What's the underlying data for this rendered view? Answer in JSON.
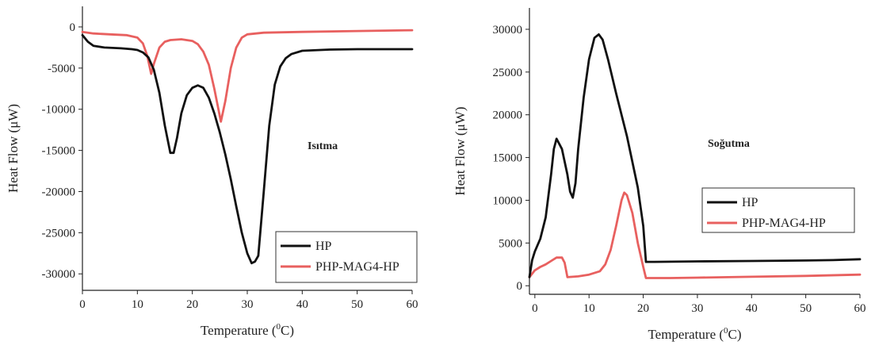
{
  "chart_data": [
    {
      "type": "line",
      "annotation": "Isıtma",
      "xlabel": "Temperature (",
      "xlabel_sup": "0",
      "xlabel_end": "C)",
      "ylabel": "Heat Flow (μW)",
      "xlim": [
        0,
        60
      ],
      "ylim": [
        -32000,
        2500
      ],
      "xticks": [
        0,
        10,
        20,
        30,
        40,
        50,
        60
      ],
      "yticks": [
        0,
        -5000,
        -10000,
        -15000,
        -20000,
        -25000,
        -30000
      ],
      "legend_position": "bottom-right",
      "series": [
        {
          "name": "HP",
          "color": "#111111",
          "points": [
            [
              0,
              -1000
            ],
            [
              1,
              -1800
            ],
            [
              2,
              -2300
            ],
            [
              4,
              -2500
            ],
            [
              7,
              -2600
            ],
            [
              9,
              -2700
            ],
            [
              10,
              -2800
            ],
            [
              11,
              -3100
            ],
            [
              12,
              -3700
            ],
            [
              13,
              -5200
            ],
            [
              14,
              -8000
            ],
            [
              15,
              -12000
            ],
            [
              16,
              -15300
            ],
            [
              16.6,
              -15300
            ],
            [
              17.2,
              -13500
            ],
            [
              18,
              -10500
            ],
            [
              19,
              -8300
            ],
            [
              20,
              -7400
            ],
            [
              21,
              -7100
            ],
            [
              22,
              -7400
            ],
            [
              23,
              -8600
            ],
            [
              24,
              -10500
            ],
            [
              25,
              -12800
            ],
            [
              26,
              -15500
            ],
            [
              27,
              -18500
            ],
            [
              28,
              -21800
            ],
            [
              29,
              -25000
            ],
            [
              30,
              -27500
            ],
            [
              30.8,
              -28700
            ],
            [
              31.4,
              -28500
            ],
            [
              32,
              -27800
            ],
            [
              33,
              -20000
            ],
            [
              34,
              -12000
            ],
            [
              35,
              -7000
            ],
            [
              36,
              -4800
            ],
            [
              37,
              -3800
            ],
            [
              38,
              -3300
            ],
            [
              40,
              -2900
            ],
            [
              45,
              -2750
            ],
            [
              50,
              -2700
            ],
            [
              55,
              -2700
            ],
            [
              60,
              -2700
            ]
          ]
        },
        {
          "name": "PHP-MAG4-HP",
          "color": "#e8605f",
          "points": [
            [
              0,
              -600
            ],
            [
              2,
              -800
            ],
            [
              5,
              -900
            ],
            [
              8,
              -1000
            ],
            [
              10,
              -1300
            ],
            [
              11,
              -2000
            ],
            [
              11.8,
              -3500
            ],
            [
              12.5,
              -5700
            ],
            [
              13,
              -4500
            ],
            [
              14,
              -2500
            ],
            [
              15,
              -1800
            ],
            [
              16,
              -1600
            ],
            [
              18,
              -1500
            ],
            [
              20,
              -1700
            ],
            [
              21,
              -2100
            ],
            [
              22,
              -3000
            ],
            [
              23,
              -4600
            ],
            [
              24,
              -7500
            ],
            [
              25.2,
              -11500
            ],
            [
              26,
              -9000
            ],
            [
              27,
              -5000
            ],
            [
              28,
              -2500
            ],
            [
              29,
              -1300
            ],
            [
              30,
              -900
            ],
            [
              33,
              -700
            ],
            [
              40,
              -600
            ],
            [
              50,
              -500
            ],
            [
              60,
              -400
            ]
          ]
        }
      ]
    },
    {
      "type": "line",
      "annotation": "Soğutma",
      "xlabel": "Temperature (",
      "xlabel_sup": "0",
      "xlabel_end": "C)",
      "ylabel": "Heat Flow (μW)",
      "xlim": [
        -1,
        60
      ],
      "ylim": [
        -1000,
        32500
      ],
      "xticks": [
        0,
        10,
        20,
        30,
        40,
        50,
        60
      ],
      "yticks": [
        0,
        5000,
        10000,
        15000,
        20000,
        25000,
        30000
      ],
      "legend_position": "center-right",
      "series": [
        {
          "name": "HP",
          "color": "#111111",
          "points": [
            [
              -1,
              1000
            ],
            [
              -0.5,
              3000
            ],
            [
              0,
              4000
            ],
            [
              1,
              5500
            ],
            [
              2,
              8000
            ],
            [
              3,
              13000
            ],
            [
              3.5,
              16000
            ],
            [
              4,
              17200
            ],
            [
              5,
              16000
            ],
            [
              6,
              13000
            ],
            [
              6.5,
              11000
            ],
            [
              7,
              10300
            ],
            [
              7.5,
              12000
            ],
            [
              8,
              16000
            ],
            [
              9,
              22000
            ],
            [
              10,
              26500
            ],
            [
              11,
              29000
            ],
            [
              11.8,
              29400
            ],
            [
              12.5,
              28800
            ],
            [
              13.5,
              26500
            ],
            [
              15,
              22500
            ],
            [
              17,
              17500
            ],
            [
              19,
              11500
            ],
            [
              20,
              7000
            ],
            [
              20.5,
              2800
            ],
            [
              22,
              2800
            ],
            [
              30,
              2850
            ],
            [
              40,
              2900
            ],
            [
              50,
              2950
            ],
            [
              55,
              3000
            ],
            [
              60,
              3100
            ]
          ]
        },
        {
          "name": "PHP-MAG4-HP",
          "color": "#e8605f",
          "points": [
            [
              -1,
              1000
            ],
            [
              0,
              1800
            ],
            [
              1,
              2200
            ],
            [
              2,
              2500
            ],
            [
              3,
              2900
            ],
            [
              4,
              3300
            ],
            [
              5,
              3300
            ],
            [
              5.5,
              2700
            ],
            [
              6,
              1000
            ],
            [
              8,
              1100
            ],
            [
              10,
              1300
            ],
            [
              12,
              1700
            ],
            [
              13,
              2500
            ],
            [
              14,
              4200
            ],
            [
              15,
              7000
            ],
            [
              16,
              10000
            ],
            [
              16.5,
              10900
            ],
            [
              17,
              10600
            ],
            [
              18,
              8500
            ],
            [
              19,
              5000
            ],
            [
              20,
              2200
            ],
            [
              20.5,
              900
            ],
            [
              25,
              900
            ],
            [
              30,
              950
            ],
            [
              40,
              1050
            ],
            [
              50,
              1150
            ],
            [
              60,
              1300
            ]
          ]
        }
      ]
    }
  ]
}
